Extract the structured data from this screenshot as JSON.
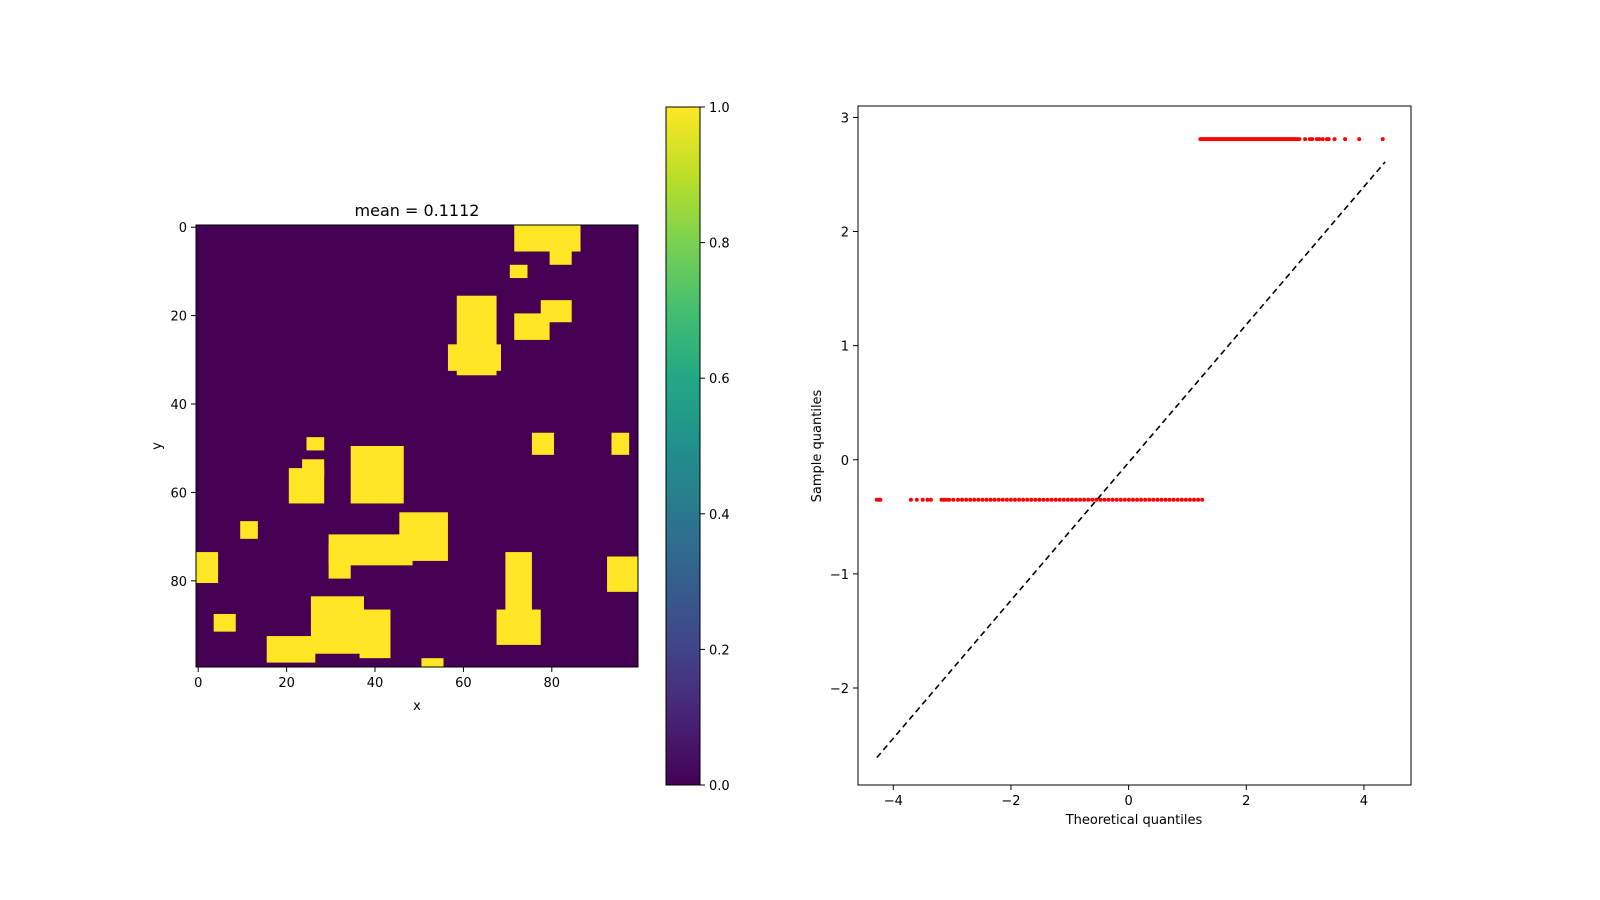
{
  "chart_data": [
    {
      "type": "heatmap",
      "title": "mean = 0.1112",
      "xlabel": "x",
      "ylabel": "y",
      "grid_size": [
        100,
        100
      ],
      "xlim": [
        0,
        99
      ],
      "ylim": [
        99,
        0
      ],
      "xticks": [
        0,
        20,
        40,
        60,
        80
      ],
      "yticks": [
        0,
        20,
        40,
        60,
        80
      ],
      "colormap": "viridis",
      "colors": {
        "zero": "#440154",
        "one": "#fde725"
      },
      "colorbar": {
        "range": [
          0.0,
          1.0
        ],
        "ticks": [
          "0.0",
          "0.2",
          "0.4",
          "0.6",
          "0.8",
          "1.0"
        ]
      },
      "mean": 0.1112,
      "regions_value_1": [
        {
          "x": [
            72,
            86
          ],
          "y": [
            0,
            5
          ]
        },
        {
          "x": [
            80,
            84
          ],
          "y": [
            5,
            8
          ]
        },
        {
          "x": [
            71,
            74
          ],
          "y": [
            9,
            11
          ]
        },
        {
          "x": [
            59,
            67
          ],
          "y": [
            16,
            33
          ]
        },
        {
          "x": [
            57,
            68
          ],
          "y": [
            27,
            32
          ]
        },
        {
          "x": [
            72,
            79
          ],
          "y": [
            20,
            25
          ]
        },
        {
          "x": [
            78,
            84
          ],
          "y": [
            17,
            21
          ]
        },
        {
          "x": [
            76,
            80
          ],
          "y": [
            47,
            51
          ]
        },
        {
          "x": [
            94,
            97
          ],
          "y": [
            47,
            51
          ]
        },
        {
          "x": [
            25,
            28
          ],
          "y": [
            48,
            50
          ]
        },
        {
          "x": [
            21,
            28
          ],
          "y": [
            55,
            62
          ]
        },
        {
          "x": [
            24,
            28
          ],
          "y": [
            53,
            56
          ]
        },
        {
          "x": [
            35,
            46
          ],
          "y": [
            50,
            62
          ]
        },
        {
          "x": [
            10,
            13
          ],
          "y": [
            67,
            70
          ]
        },
        {
          "x": [
            0,
            4
          ],
          "y": [
            74,
            80
          ]
        },
        {
          "x": [
            30,
            48
          ],
          "y": [
            70,
            76
          ]
        },
        {
          "x": [
            46,
            56
          ],
          "y": [
            65,
            75
          ]
        },
        {
          "x": [
            30,
            34
          ],
          "y": [
            72,
            79
          ]
        },
        {
          "x": [
            70,
            75
          ],
          "y": [
            74,
            92
          ]
        },
        {
          "x": [
            68,
            77
          ],
          "y": [
            87,
            94
          ]
        },
        {
          "x": [
            93,
            99
          ],
          "y": [
            75,
            82
          ]
        },
        {
          "x": [
            4,
            8
          ],
          "y": [
            88,
            91
          ]
        },
        {
          "x": [
            16,
            26
          ],
          "y": [
            93,
            98
          ]
        },
        {
          "x": [
            26,
            37
          ],
          "y": [
            84,
            96
          ]
        },
        {
          "x": [
            37,
            43
          ],
          "y": [
            87,
            97
          ]
        },
        {
          "x": [
            51,
            55
          ],
          "y": [
            98,
            99
          ]
        }
      ]
    },
    {
      "type": "scatter",
      "title": "",
      "xlabel": "Theoretical quantiles",
      "ylabel": "Sample quantiles",
      "xlim": [
        -4.6,
        4.8
      ],
      "ylim": [
        -2.85,
        3.1
      ],
      "xticks": [
        "−4",
        "−2",
        "0",
        "2",
        "4"
      ],
      "yticks": [
        "−2",
        "−1",
        "0",
        "1",
        "2",
        "3"
      ],
      "point_color": "#ff0000",
      "reference_line": {
        "x": [
          -4.28,
          4.36
        ],
        "y": [
          -2.61,
          2.61
        ],
        "style": "dashed",
        "color": "#000000"
      },
      "low_group": {
        "y": -0.35,
        "x_dense": [
          -2.9,
          1.25
        ],
        "x_sparse": [
          -4.28,
          -4.24,
          -4.22,
          -3.7,
          -3.6,
          -3.5,
          -3.42,
          -3.36,
          -3.18,
          -3.14,
          -3.1,
          -3.05,
          -2.98
        ]
      },
      "high_group": {
        "y": 2.81,
        "x_dense": [
          1.22,
          2.9
        ],
        "x_sparse": [
          3.0,
          3.08,
          3.12,
          3.2,
          3.24,
          3.3,
          3.37,
          3.4,
          3.5,
          3.68,
          3.92,
          4.32
        ]
      }
    }
  ]
}
